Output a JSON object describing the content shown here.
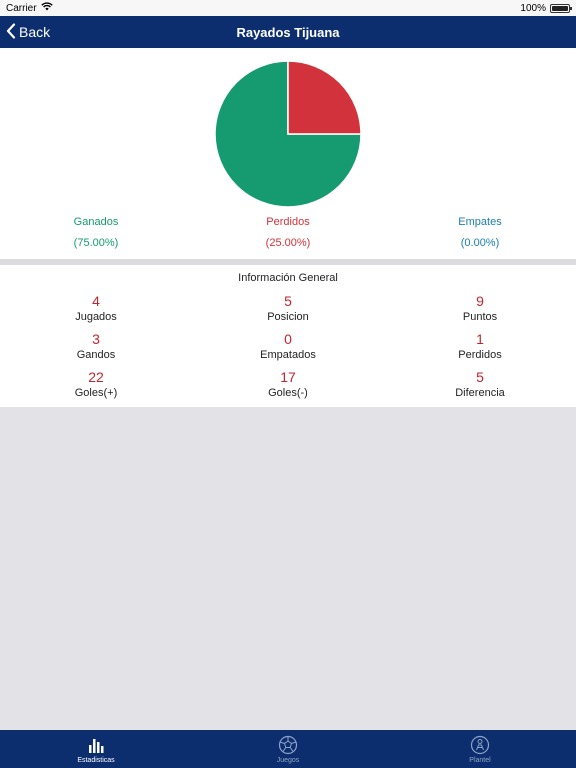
{
  "status_bar": {
    "carrier": "Carrier",
    "battery": "100%"
  },
  "nav": {
    "back_label": "Back",
    "title": "Rayados Tijuana"
  },
  "chart_data": {
    "type": "pie",
    "slices": [
      {
        "label": "Ganados",
        "percent_label": "(75.00%)",
        "value": 75.0,
        "color": "#159b6f"
      },
      {
        "label": "Perdidos",
        "percent_label": "(25.00%)",
        "value": 25.0,
        "color": "#d1323c"
      },
      {
        "label": "Empates",
        "percent_label": "(0.00%)",
        "value": 0.0,
        "color": "#1b7fae"
      }
    ]
  },
  "info": {
    "title": "Información General",
    "rows": [
      [
        {
          "value": "4",
          "label": "Jugados"
        },
        {
          "value": "5",
          "label": "Posicion"
        },
        {
          "value": "9",
          "label": "Puntos"
        }
      ],
      [
        {
          "value": "3",
          "label": "Gandos"
        },
        {
          "value": "0",
          "label": "Empatados"
        },
        {
          "value": "1",
          "label": "Perdidos"
        }
      ],
      [
        {
          "value": "22",
          "label": "Goles(+)"
        },
        {
          "value": "17",
          "label": "Goles(-)"
        },
        {
          "value": "5",
          "label": "Diferencia"
        }
      ]
    ]
  },
  "tabs": [
    {
      "label": "Estadisticas",
      "icon": "bar-chart-icon",
      "active": true
    },
    {
      "label": "Juegos",
      "icon": "soccer-ball-icon",
      "active": false
    },
    {
      "label": "Plantel",
      "icon": "player-icon",
      "active": false
    }
  ]
}
